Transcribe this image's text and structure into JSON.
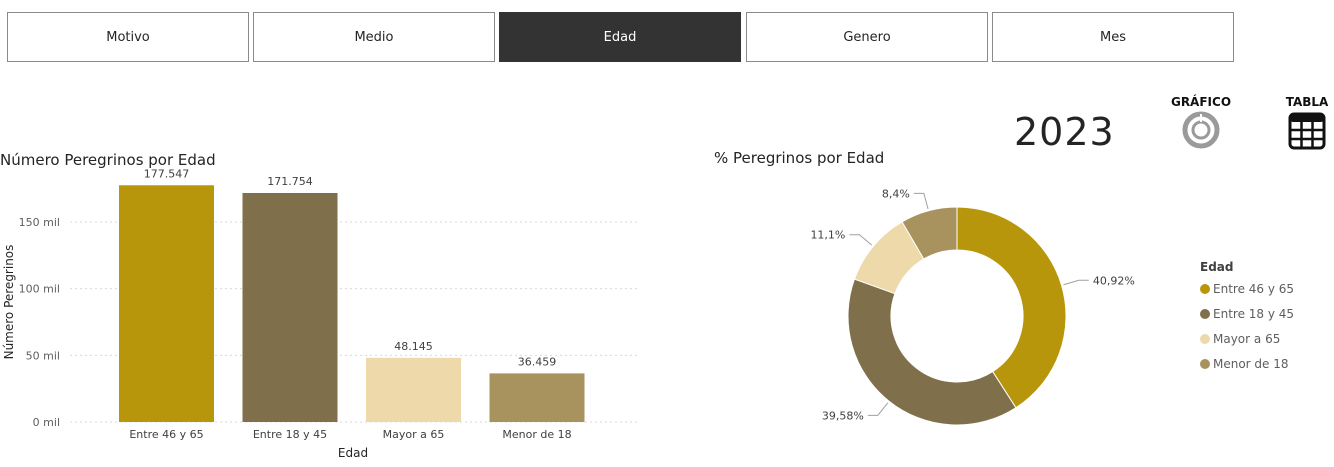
{
  "tabs": [
    {
      "label": "Motivo",
      "active": false
    },
    {
      "label": "Medio",
      "active": false
    },
    {
      "label": "Edad",
      "active": true
    },
    {
      "label": "Genero",
      "active": false
    },
    {
      "label": "Mes",
      "active": false
    }
  ],
  "year": "2023",
  "view_toggles": {
    "chart_label": "GRÁFICO",
    "table_label": "TABLA",
    "chart_icon": "donut-chart-icon",
    "table_icon": "table-icon"
  },
  "colors": {
    "entre_46_65": "#B8960C",
    "entre_18_45": "#7F6F4A",
    "mayor_65": "#EDD9AA",
    "menor_18": "#A8935F",
    "active_tab": "#333333"
  },
  "chart_data": [
    {
      "type": "bar",
      "title": "Número Peregrinos por Edad",
      "xlabel": "Edad",
      "ylabel": "Número Peregrinos",
      "categories": [
        "Entre 46 y 65",
        "Entre 18 y 45",
        "Mayor a 65",
        "Menor de 18"
      ],
      "values": [
        177547,
        171754,
        48145,
        36459
      ],
      "data_labels": [
        "177.547",
        "171.754",
        "48.145",
        "36.459"
      ],
      "yticks": [
        0,
        50000,
        100000,
        150000
      ],
      "ytick_labels": [
        "0 mil",
        "50 mil",
        "100 mil",
        "150 mil"
      ],
      "ylim": [
        0,
        180000
      ],
      "grid": true,
      "colors": [
        "#B8960C",
        "#7F6F4A",
        "#EDD9AA",
        "#A8935F"
      ]
    },
    {
      "type": "pie",
      "subtype": "donut",
      "title": "% Peregrinos por Edad",
      "legend_title": "Edad",
      "legend_position": "right",
      "labels": [
        "Entre 46 y 65",
        "Entre 18 y 45",
        "Mayor a 65",
        "Menor de 18"
      ],
      "values": [
        40.92,
        39.58,
        11.1,
        8.4
      ],
      "data_labels": [
        "40,92%",
        "39,58%",
        "11,1%",
        "8,4%"
      ],
      "colors": [
        "#B8960C",
        "#7F6F4A",
        "#EDD9AA",
        "#A8935F"
      ]
    }
  ]
}
